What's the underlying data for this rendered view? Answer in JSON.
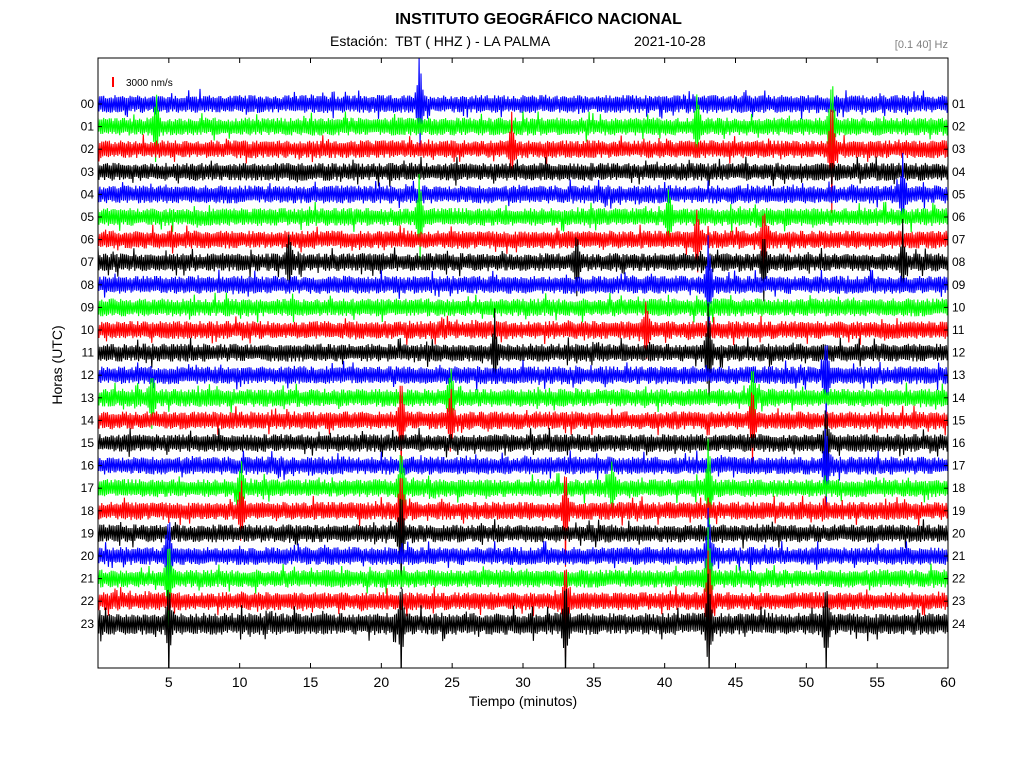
{
  "header": {
    "title": "INSTITUTO GEOGRÁFICO NACIONAL",
    "station": "Estación:  TBT ( HHZ ) - LA PALMA",
    "date": "2021-10-28",
    "filter": "[0.1 40] Hz"
  },
  "chart_data": {
    "type": "line",
    "title": "INSTITUTO GEOGRÁFICO NACIONAL",
    "xlabel": "Tiempo (minutos)",
    "ylabel": "Horas (UTC)",
    "xlim": [
      0,
      60
    ],
    "x_ticks": [
      "5",
      "10",
      "15",
      "20",
      "25",
      "30",
      "35",
      "40",
      "45",
      "50",
      "55",
      "60"
    ],
    "left_hours": [
      "00",
      "01",
      "02",
      "03",
      "04",
      "05",
      "06",
      "07",
      "08",
      "09",
      "10",
      "11",
      "12",
      "13",
      "14",
      "15",
      "16",
      "17",
      "18",
      "19",
      "20",
      "21",
      "22",
      "23"
    ],
    "right_hours": [
      "01",
      "02",
      "03",
      "04",
      "05",
      "06",
      "07",
      "08",
      "09",
      "10",
      "11",
      "12",
      "13",
      "14",
      "15",
      "16",
      "17",
      "18",
      "19",
      "20",
      "21",
      "22",
      "23",
      "24"
    ],
    "trace_colors": [
      "#0000ff",
      "#00ff00",
      "#ff0000",
      "#000000"
    ],
    "scale_label": "3000 nm/s",
    "scale_color": "#ff0000",
    "grid": false,
    "events": [
      {
        "minute": 22.7,
        "hours": [
          0,
          5
        ],
        "amp": 1.4
      },
      {
        "minute": 4.1,
        "hours": [
          1
        ],
        "amp": 1.0
      },
      {
        "minute": 42.3,
        "hours": [
          1,
          6
        ],
        "amp": 0.9
      },
      {
        "minute": 51.8,
        "hours": [
          1,
          2
        ],
        "amp": 1.6
      },
      {
        "minute": 29.2,
        "hours": [
          2
        ],
        "amp": 0.8
      },
      {
        "minute": 47.0,
        "hours": [
          6,
          7
        ],
        "amp": 0.9
      },
      {
        "minute": 56.8,
        "hours": [
          4,
          7
        ],
        "amp": 0.9
      },
      {
        "minute": 40.3,
        "hours": [
          5
        ],
        "amp": 0.8
      },
      {
        "minute": 13.5,
        "hours": [
          7
        ],
        "amp": 0.8
      },
      {
        "minute": 33.8,
        "hours": [
          7
        ],
        "amp": 0.8
      },
      {
        "minute": 28.0,
        "hours": [
          11
        ],
        "amp": 1.0
      },
      {
        "minute": 43.1,
        "hours": [
          8,
          11,
          17,
          20,
          21,
          22,
          23
        ],
        "amp": 1.6
      },
      {
        "minute": 21.4,
        "hours": [
          14,
          17,
          18,
          19,
          23
        ],
        "amp": 1.3
      },
      {
        "minute": 51.4,
        "hours": [
          12,
          15,
          16,
          23
        ],
        "amp": 1.2
      },
      {
        "minute": 24.9,
        "hours": [
          13,
          14
        ],
        "amp": 0.9
      },
      {
        "minute": 46.2,
        "hours": [
          13,
          14
        ],
        "amp": 1.0
      },
      {
        "minute": 10.1,
        "hours": [
          17,
          18
        ],
        "amp": 0.8
      },
      {
        "minute": 5.0,
        "hours": [
          20,
          21,
          23
        ],
        "amp": 1.2
      },
      {
        "minute": 33.0,
        "hours": [
          18,
          22,
          23
        ],
        "amp": 1.3
      },
      {
        "minute": 36.3,
        "hours": [
          17
        ],
        "amp": 0.7
      },
      {
        "minute": 38.7,
        "hours": [
          10
        ],
        "amp": 0.8
      },
      {
        "minute": 3.8,
        "hours": [
          13
        ],
        "amp": 0.7
      }
    ]
  }
}
